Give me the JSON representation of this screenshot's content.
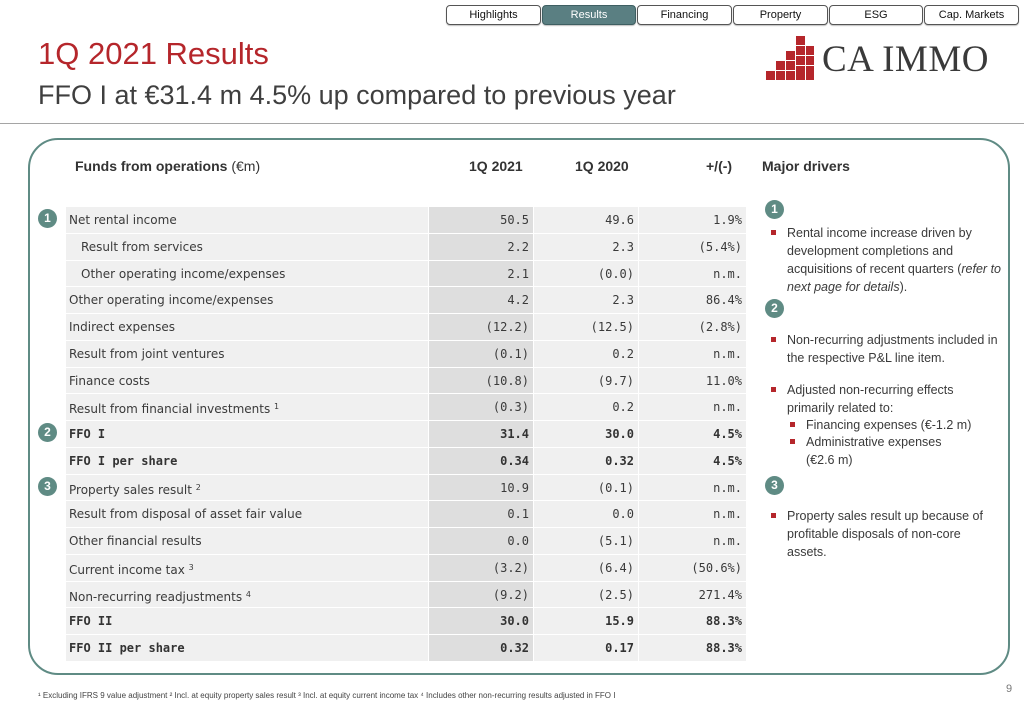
{
  "nav": {
    "tabs": [
      {
        "label": "Highlights",
        "active": false
      },
      {
        "label": "Results",
        "active": true
      },
      {
        "label": "Financing",
        "active": false
      },
      {
        "label": "Property",
        "active": false
      },
      {
        "label": "ESG",
        "active": false
      },
      {
        "label": "Cap. Markets",
        "active": false
      }
    ]
  },
  "header": {
    "title": "1Q 2021 Results",
    "subtitle": "FFO I at €31.4 m 4.5% up compared to previous year",
    "logo_text": "CA IMMO"
  },
  "table": {
    "heading": "Funds from operations",
    "heading_unit": "(€m)",
    "col_1q2021": "1Q 2021",
    "col_1q2020": "1Q 2020",
    "col_change": "+/(-)",
    "rows": [
      {
        "label": "Net rental income",
        "sup": "",
        "v1": "50.5",
        "v2": "49.6",
        "v3": "1.9%"
      },
      {
        "label": "Result from services",
        "sup": "",
        "v1": "2.2",
        "v2": "2.3",
        "v3": "(5.4%)"
      },
      {
        "label": "Other operating income/expenses",
        "sup": "",
        "v1": "2.1",
        "v2": "(0.0)",
        "v3": "n.m."
      },
      {
        "label": "Other operating income/expenses",
        "sup": "",
        "v1": "4.2",
        "v2": "2.3",
        "v3": "86.4%"
      },
      {
        "label": "Indirect expenses",
        "sup": "",
        "v1": "(12.2)",
        "v2": "(12.5)",
        "v3": "(2.8%)"
      },
      {
        "label": "Result from joint ventures",
        "sup": "",
        "v1": "(0.1)",
        "v2": "0.2",
        "v3": "n.m."
      },
      {
        "label": "Finance costs",
        "sup": "",
        "v1": "(10.8)",
        "v2": "(9.7)",
        "v3": "11.0%"
      },
      {
        "label": "Result from financial investments",
        "sup": "1",
        "v1": "(0.3)",
        "v2": "0.2",
        "v3": "n.m."
      },
      {
        "label": "FFO I",
        "sup": "",
        "v1": "31.4",
        "v2": "30.0",
        "v3": "4.5%"
      },
      {
        "label": "FFO I per share",
        "sup": "",
        "v1": "0.34",
        "v2": "0.32",
        "v3": "4.5%"
      },
      {
        "label": "Property sales result",
        "sup": "2",
        "v1": "10.9",
        "v2": "(0.1)",
        "v3": "n.m."
      },
      {
        "label": "Result from disposal of asset fair value",
        "sup": "",
        "v1": "0.1",
        "v2": "0.0",
        "v3": "n.m."
      },
      {
        "label": "Other financial results",
        "sup": "",
        "v1": "0.0",
        "v2": "(5.1)",
        "v3": "n.m."
      },
      {
        "label": "Current income tax",
        "sup": "3",
        "v1": "(3.2)",
        "v2": "(6.4)",
        "v3": "(50.6%)"
      },
      {
        "label": "Non-recurring readjustments",
        "sup": "4",
        "v1": "(9.2)",
        "v2": "(2.5)",
        "v3": "271.4%"
      },
      {
        "label": "FFO II",
        "sup": "",
        "v1": "30.0",
        "v2": "15.9",
        "v3": "88.3%"
      },
      {
        "label": "FFO II per share",
        "sup": "",
        "v1": "0.32",
        "v2": "0.17",
        "v3": "88.3%"
      }
    ]
  },
  "badges": [
    "1",
    "2",
    "3"
  ],
  "drivers": {
    "heading": "Major drivers",
    "d1_text": "Rental income increase driven by development completions and acquisitions of recent quarters (",
    "d1_italic": "refer to next page for details",
    "d1_end": ").",
    "d2a": "Non-recurring adjustments included in the respective P&L line item.",
    "d2b": "Adjusted non-recurring effects primarily related to:",
    "d2b_sub1": "Financing expenses (€-1.2 m)",
    "d2b_sub2": "Administrative expenses (€2.6 m)",
    "d3": "Property sales result up because of profitable disposals of non-core assets."
  },
  "footnote": "¹ Excluding IFRS 9 value adjustment  ² Incl. at equity property sales result  ³ Incl. at equity current income tax  ⁴ Includes other non-recurring results adjusted in FFO I",
  "page_number": "9",
  "colors": {
    "accent_red": "#b5262b",
    "teal": "#5f8b84",
    "nav_active": "#5a7f82"
  }
}
